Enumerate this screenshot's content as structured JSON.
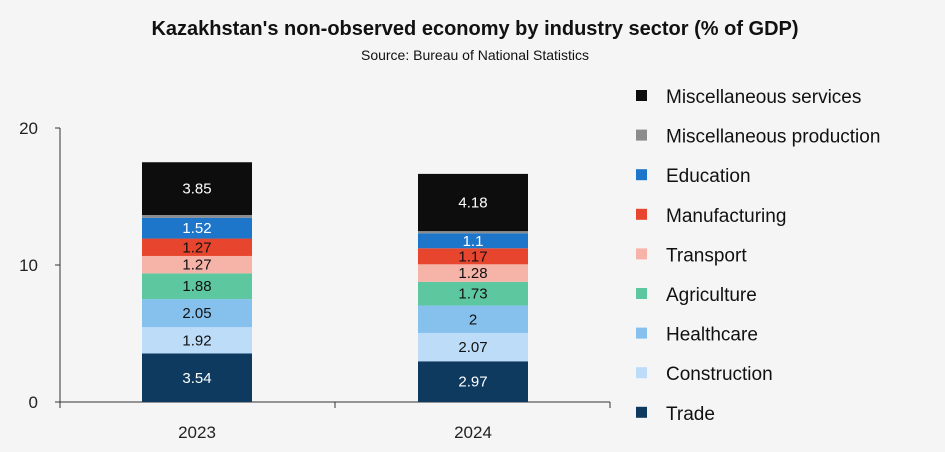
{
  "chart_data": {
    "type": "bar",
    "stacked": true,
    "title": "Kazakhstan's non-observed economy by industry sector (% of GDP)",
    "subtitle": "Source: Bureau of National Statistics",
    "categories": [
      "2023",
      "2024"
    ],
    "ylim": [
      0,
      20
    ],
    "yticks": [
      0,
      10,
      20
    ],
    "legend_position": "right",
    "series": [
      {
        "name": "Trade",
        "color": "#0e3a5f",
        "label_color": "#ffffff",
        "values": [
          3.54,
          2.97
        ],
        "labels": [
          "3.54",
          "2.97"
        ]
      },
      {
        "name": "Construction",
        "color": "#bcdcf8",
        "label_color": "#111111",
        "values": [
          1.92,
          2.07
        ],
        "labels": [
          "1.92",
          "2.07"
        ]
      },
      {
        "name": "Healthcare",
        "color": "#86c1ee",
        "label_color": "#111111",
        "values": [
          2.05,
          2.0
        ],
        "labels": [
          "2.05",
          "2"
        ]
      },
      {
        "name": "Agriculture",
        "color": "#5dc8a0",
        "label_color": "#111111",
        "values": [
          1.88,
          1.73
        ],
        "labels": [
          "1.88",
          "1.73"
        ]
      },
      {
        "name": "Transport",
        "color": "#f6b3a8",
        "label_color": "#111111",
        "values": [
          1.27,
          1.28
        ],
        "labels": [
          "1.27",
          "1.28"
        ]
      },
      {
        "name": "Manufacturing",
        "color": "#e8452e",
        "label_color": "#111111",
        "values": [
          1.27,
          1.17
        ],
        "labels": [
          "1.27",
          "1.17"
        ]
      },
      {
        "name": "Education",
        "color": "#1d76c9",
        "label_color": "#ffffff",
        "values": [
          1.52,
          1.1
        ],
        "labels": [
          "1.52",
          "1.1"
        ]
      },
      {
        "name": "Miscellaneous production",
        "color": "#8c8c8c",
        "label_color": "#ffffff",
        "values": [
          0.2,
          0.15
        ],
        "labels": [
          "",
          ""
        ]
      },
      {
        "name": "Miscellaneous services",
        "color": "#0d0d0d",
        "label_color": "#ffffff",
        "values": [
          3.85,
          4.18
        ],
        "labels": [
          "3.85",
          "4.18"
        ]
      }
    ]
  }
}
